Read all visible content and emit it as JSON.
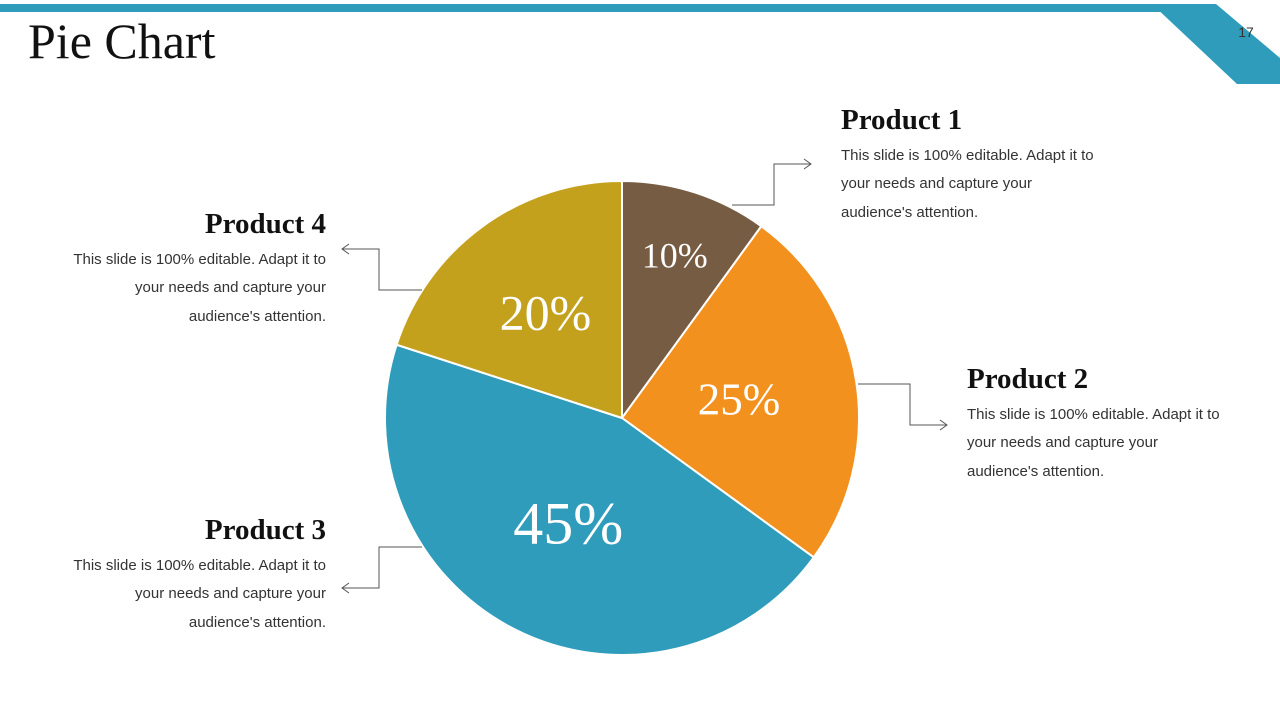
{
  "slide": {
    "title": "Pie Chart",
    "page_number": "17",
    "accent_color": "#2f9cbb"
  },
  "products": [
    {
      "name": "Product 1",
      "text": "This slide is 100% editable. Adapt it to your needs and capture your audience's attention."
    },
    {
      "name": "Product 2",
      "text": "This slide is 100% editable. Adapt it to your needs and capture your audience's attention."
    },
    {
      "name": "Product 3",
      "text": "This slide is 100% editable. Adapt it to your needs and capture your audience's attention."
    },
    {
      "name": "Product 4",
      "text": "This slide is 100% editable. Adapt it to your needs and capture your audience's attention."
    }
  ],
  "chart_data": {
    "type": "pie",
    "categories": [
      "Product 1",
      "Product 2",
      "Product 3",
      "Product 4"
    ],
    "values": [
      10,
      25,
      45,
      20
    ],
    "labels": [
      "10%",
      "25%",
      "45%",
      "20%"
    ],
    "colors": [
      "#765c42",
      "#f2911e",
      "#2f9cbb",
      "#c4a11d"
    ],
    "start_angle_deg": 0,
    "direction": "clockwise"
  }
}
